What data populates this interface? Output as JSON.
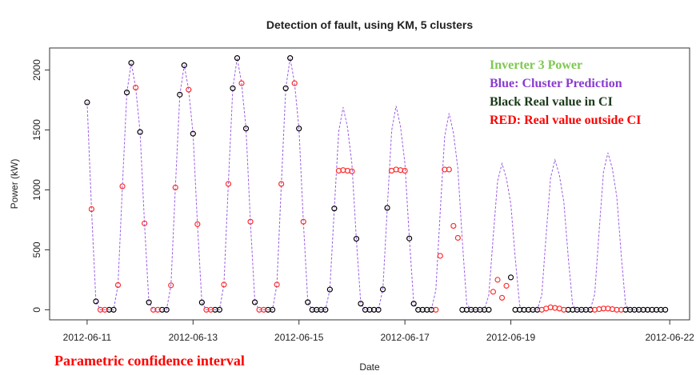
{
  "chart_data": {
    "type": "scatter",
    "title": "Detection of fault, using KM, 5 clusters",
    "x_label": "Date",
    "y_label": "Power (kW)",
    "annotation": "Parametric confidence interval",
    "annotation_color": "#ff0000",
    "legend_title": "Inverter 3 Power",
    "legend_title_color": "#7ec850",
    "legend_position": "top-right",
    "xlim": [
      "2012-06-10 07:00",
      "2012-06-22 09:00"
    ],
    "xticks": [
      "2012-06-11",
      "2012-06-13",
      "2012-06-15",
      "2012-06-17",
      "2012-06-19",
      "2012-06-22"
    ],
    "ylim": [
      -84,
      2184
    ],
    "yticks": [
      0,
      500,
      1000,
      1500,
      2000
    ],
    "x": [
      "2012-06-11 00:00",
      "2012-06-11 02:00",
      "2012-06-11 04:00",
      "2012-06-11 06:00",
      "2012-06-11 08:00",
      "2012-06-11 10:00",
      "2012-06-11 12:00",
      "2012-06-11 14:00",
      "2012-06-11 16:00",
      "2012-06-11 18:00",
      "2012-06-11 20:00",
      "2012-06-11 22:00",
      "2012-06-12 00:00",
      "2012-06-12 02:00",
      "2012-06-12 04:00",
      "2012-06-12 06:00",
      "2012-06-12 08:00",
      "2012-06-12 10:00",
      "2012-06-12 12:00",
      "2012-06-12 14:00",
      "2012-06-12 16:00",
      "2012-06-12 18:00",
      "2012-06-12 20:00",
      "2012-06-12 22:00",
      "2012-06-13 00:00",
      "2012-06-13 02:00",
      "2012-06-13 04:00",
      "2012-06-13 06:00",
      "2012-06-13 08:00",
      "2012-06-13 10:00",
      "2012-06-13 12:00",
      "2012-06-13 14:00",
      "2012-06-13 16:00",
      "2012-06-13 18:00",
      "2012-06-13 20:00",
      "2012-06-13 22:00",
      "2012-06-14 00:00",
      "2012-06-14 02:00",
      "2012-06-14 04:00",
      "2012-06-14 06:00",
      "2012-06-14 08:00",
      "2012-06-14 10:00",
      "2012-06-14 12:00",
      "2012-06-14 14:00",
      "2012-06-14 16:00",
      "2012-06-14 18:00",
      "2012-06-14 20:00",
      "2012-06-14 22:00",
      "2012-06-15 00:00",
      "2012-06-15 02:00",
      "2012-06-15 04:00",
      "2012-06-15 06:00",
      "2012-06-15 08:00",
      "2012-06-15 10:00",
      "2012-06-15 12:00",
      "2012-06-15 14:00",
      "2012-06-15 16:00",
      "2012-06-15 18:00",
      "2012-06-15 20:00",
      "2012-06-15 22:00",
      "2012-06-16 00:00",
      "2012-06-16 02:00",
      "2012-06-16 04:00",
      "2012-06-16 06:00",
      "2012-06-16 08:00",
      "2012-06-16 10:00",
      "2012-06-16 12:00",
      "2012-06-16 14:00",
      "2012-06-16 16:00",
      "2012-06-16 18:00",
      "2012-06-16 20:00",
      "2012-06-16 22:00",
      "2012-06-17 00:00",
      "2012-06-17 02:00",
      "2012-06-17 04:00",
      "2012-06-17 06:00",
      "2012-06-17 08:00",
      "2012-06-17 10:00",
      "2012-06-17 12:00",
      "2012-06-17 14:00",
      "2012-06-17 16:00",
      "2012-06-17 18:00",
      "2012-06-17 20:00",
      "2012-06-17 22:00",
      "2012-06-18 00:00",
      "2012-06-18 02:00",
      "2012-06-18 04:00",
      "2012-06-18 06:00",
      "2012-06-18 08:00",
      "2012-06-18 10:00",
      "2012-06-18 12:00",
      "2012-06-18 14:00",
      "2012-06-18 16:00",
      "2012-06-18 18:00",
      "2012-06-18 20:00",
      "2012-06-18 22:00",
      "2012-06-19 00:00",
      "2012-06-19 02:00",
      "2012-06-19 04:00",
      "2012-06-19 06:00",
      "2012-06-19 08:00",
      "2012-06-19 10:00",
      "2012-06-19 12:00",
      "2012-06-19 14:00",
      "2012-06-19 16:00",
      "2012-06-19 18:00",
      "2012-06-19 20:00",
      "2012-06-19 22:00",
      "2012-06-20 00:00",
      "2012-06-20 02:00",
      "2012-06-20 04:00",
      "2012-06-20 06:00",
      "2012-06-20 08:00",
      "2012-06-20 10:00",
      "2012-06-20 12:00",
      "2012-06-20 14:00",
      "2012-06-20 16:00",
      "2012-06-20 18:00",
      "2012-06-20 20:00",
      "2012-06-20 22:00",
      "2012-06-21 00:00",
      "2012-06-21 02:00",
      "2012-06-21 04:00",
      "2012-06-21 06:00",
      "2012-06-21 08:00",
      "2012-06-21 10:00",
      "2012-06-21 12:00",
      "2012-06-21 14:00",
      "2012-06-21 16:00",
      "2012-06-21 18:00",
      "2012-06-21 20:00",
      "2012-06-21 22:00"
    ],
    "series": [
      {
        "name": "Blue: Cluster Prediction",
        "style": "line",
        "color": "#9b5de5",
        "label_color": "#8a3cd0",
        "values": [
          1730,
          840,
          70,
          0,
          0,
          0,
          0,
          206,
          1030,
          1813,
          2060,
          1854,
          1483,
          721,
          62,
          0,
          0,
          0,
          0,
          204,
          1020,
          1795,
          2040,
          1836,
          1469,
          714,
          61,
          0,
          0,
          0,
          0,
          210,
          1050,
          1848,
          2100,
          1890,
          1512,
          735,
          63,
          0,
          0,
          0,
          0,
          210,
          1050,
          1848,
          2100,
          1890,
          1512,
          735,
          63,
          0,
          0,
          0,
          0,
          169,
          845,
          1487,
          1690,
          1521,
          1217,
          592,
          51,
          0,
          0,
          0,
          0,
          170,
          850,
          1496,
          1700,
          1530,
          1224,
          595,
          51,
          0,
          0,
          0,
          0,
          164,
          820,
          1443,
          1640,
          1476,
          1181,
          574,
          49,
          0,
          0,
          0,
          0,
          122,
          610,
          1074,
          1220,
          1098,
          878,
          427,
          37,
          0,
          0,
          0,
          0,
          125,
          625,
          1100,
          1250,
          1125,
          900,
          438,
          38,
          0,
          0,
          0,
          0,
          131,
          655,
          1153,
          1310,
          1179,
          943,
          459,
          39,
          0,
          0,
          0,
          0,
          0,
          0,
          0,
          0,
          0
        ]
      },
      {
        "name": "Black Real value in CI",
        "style": "points",
        "color": "#000000",
        "label_color": "#1a3a1a",
        "values": [
          1730,
          null,
          70,
          null,
          null,
          0,
          0,
          null,
          null,
          1813,
          2060,
          null,
          1483,
          null,
          62,
          null,
          null,
          0,
          0,
          null,
          null,
          1795,
          2040,
          null,
          1469,
          null,
          61,
          null,
          null,
          0,
          0,
          null,
          null,
          1848,
          2100,
          null,
          1512,
          null,
          63,
          null,
          null,
          0,
          0,
          null,
          null,
          1848,
          2100,
          null,
          1512,
          null,
          63,
          0,
          0,
          0,
          0,
          169,
          845,
          null,
          null,
          null,
          null,
          592,
          51,
          0,
          0,
          0,
          0,
          170,
          850,
          null,
          null,
          null,
          null,
          595,
          51,
          0,
          0,
          0,
          0,
          null,
          null,
          null,
          null,
          null,
          null,
          0,
          0,
          0,
          0,
          0,
          0,
          0,
          null,
          null,
          null,
          null,
          270,
          0,
          0,
          0,
          0,
          0,
          0,
          null,
          null,
          null,
          null,
          null,
          null,
          0,
          0,
          0,
          0,
          0,
          0,
          null,
          null,
          null,
          null,
          null,
          null,
          null,
          0,
          0,
          0,
          0,
          0,
          0,
          0,
          0,
          0,
          0
        ]
      },
      {
        "name": "RED: Real value outside CI",
        "style": "points",
        "color": "#ff2a2a",
        "label_color": "#ff0000",
        "values": [
          null,
          840,
          null,
          0,
          0,
          null,
          null,
          206,
          1030,
          null,
          null,
          1854,
          null,
          721,
          null,
          0,
          0,
          null,
          null,
          204,
          1020,
          null,
          null,
          1836,
          null,
          714,
          null,
          0,
          0,
          null,
          null,
          210,
          1050,
          null,
          null,
          1890,
          null,
          735,
          null,
          0,
          0,
          null,
          null,
          210,
          1050,
          null,
          null,
          1890,
          null,
          735,
          null,
          null,
          null,
          null,
          null,
          null,
          null,
          1160,
          1165,
          1160,
          1155,
          null,
          null,
          null,
          null,
          null,
          null,
          null,
          null,
          1160,
          1170,
          1165,
          1160,
          null,
          null,
          null,
          null,
          null,
          null,
          0,
          450,
          1170,
          1170,
          700,
          600,
          null,
          null,
          null,
          null,
          null,
          null,
          null,
          150,
          250,
          100,
          200,
          null,
          null,
          null,
          null,
          null,
          null,
          null,
          0,
          10,
          20,
          15,
          10,
          0,
          null,
          null,
          null,
          null,
          null,
          null,
          0,
          5,
          10,
          10,
          5,
          0,
          0,
          null,
          null,
          null,
          null,
          null,
          null,
          null,
          null,
          null,
          null
        ]
      }
    ]
  }
}
